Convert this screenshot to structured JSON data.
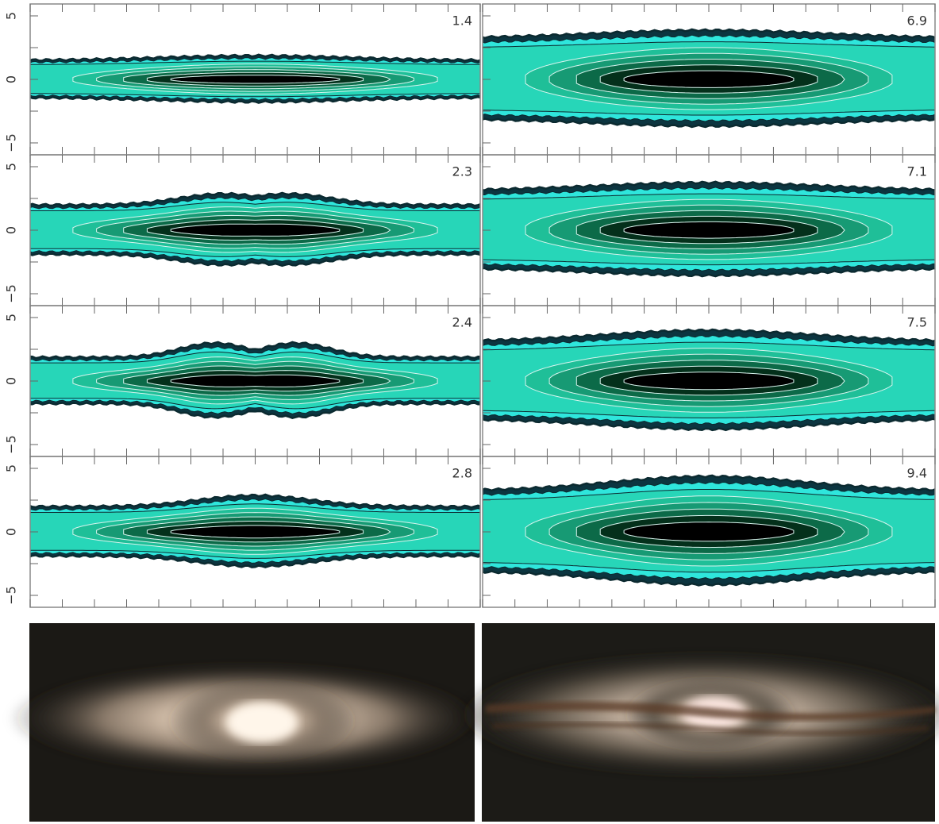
{
  "panels": [
    {
      "label": "1.4"
    },
    {
      "label": "2.3"
    },
    {
      "label": "2.4"
    },
    {
      "label": "2.8"
    },
    {
      "label": "6.9"
    },
    {
      "label": "7.1"
    },
    {
      "label": "7.5"
    },
    {
      "label": "9.4"
    }
  ],
  "y_tick_labels": [
    "5",
    "0",
    "−5"
  ]
}
